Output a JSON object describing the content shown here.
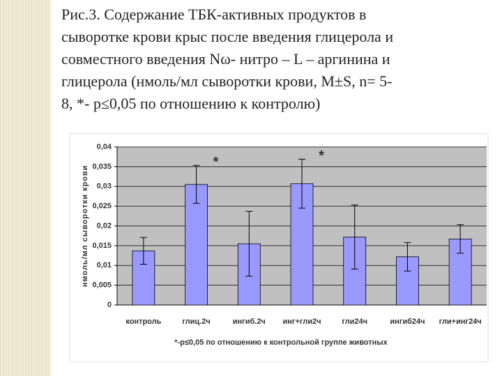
{
  "title_lines": [
    "Рис.3. Содержание ТБК-активных продуктов в",
    "сыворотке крови крыс после введения глицерола и",
    "совместного введения Nω- нитро – L – аргинина и",
    "глицерола (нмоль/мл сыворотки крови, M±S, n= 5-",
    "8, *- p≤0,05 по отношению к контролю)"
  ],
  "chart_data": {
    "type": "bar",
    "categories": [
      "контроль",
      "глиц.2ч",
      "ингиб.2ч",
      "инг+гли2ч",
      "гли24ч",
      "ингиб24ч",
      "гли+инг24ч"
    ],
    "values": [
      0.0137,
      0.0305,
      0.0155,
      0.0307,
      0.0172,
      0.0122,
      0.0167
    ],
    "errors": [
      0.0034,
      0.0048,
      0.0082,
      0.0062,
      0.0081,
      0.0036,
      0.0036
    ],
    "color": "#9999ff",
    "ylabel": "нмоль/мл сыворотки крови",
    "xlabel": "*-p≤0,05 по отношению к контрольной группе животных",
    "annotations": [
      {
        "text": "*",
        "category": "глиц.2ч"
      },
      {
        "text": "*",
        "category": "инг+гли2ч"
      }
    ],
    "ylim": [
      0,
      0.04
    ],
    "yticks": [
      0,
      {
        "value": 0.005,
        "label": "0,005"
      },
      {
        "value": 0.01,
        "label": "0,01"
      },
      {
        "value": 0.015,
        "label": "0,015"
      },
      {
        "value": 0.02,
        "label": "0,02"
      },
      {
        "value": 0.025,
        "label": "0,025"
      },
      {
        "value": 0.03,
        "label": "0,03"
      },
      {
        "value": 0.035,
        "label": "0,035"
      },
      {
        "value": 0.04,
        "label": "0,04"
      }
    ],
    "grid": true
  }
}
